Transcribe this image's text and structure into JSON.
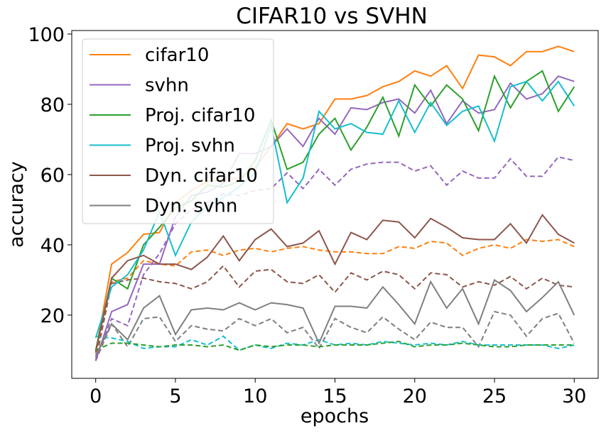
{
  "chart_data": {
    "type": "line",
    "title": "CIFAR10 vs SVHN",
    "xlabel": "epochs",
    "ylabel": "accuracy",
    "xlim": [
      -1.5,
      31.5
    ],
    "ylim": [
      2,
      101
    ],
    "xticks": [
      0,
      5,
      10,
      15,
      20,
      25,
      30
    ],
    "yticks": [
      20,
      40,
      60,
      80,
      100
    ],
    "grid": false,
    "legend_position": "top-left",
    "x": [
      0,
      1,
      2,
      3,
      4,
      5,
      6,
      7,
      8,
      9,
      10,
      11,
      12,
      13,
      14,
      15,
      16,
      17,
      18,
      19,
      20,
      21,
      22,
      23,
      24,
      25,
      26,
      27,
      28,
      29,
      30
    ],
    "series": [
      {
        "name": "cifar10",
        "color": "#ff7f0e",
        "dash": "solid",
        "values": [
          9.5,
          34.5,
          37.8,
          43,
          43.5,
          52,
          55.5,
          58,
          58.5,
          59,
          62,
          68,
          74.5,
          73,
          74.5,
          81.5,
          81.5,
          82.5,
          85,
          86.5,
          89.5,
          88,
          91,
          84.5,
          94,
          93.5,
          91,
          95,
          95,
          96.5,
          95
        ]
      },
      {
        "name": "svhn",
        "color": "#9467bd",
        "dash": "solid",
        "values": [
          7,
          21,
          23,
          34.5,
          34.5,
          48,
          54,
          55,
          57.5,
          66,
          66,
          68,
          73,
          68,
          76,
          71.5,
          79,
          78.5,
          80.5,
          81.5,
          77.5,
          84,
          74.5,
          81,
          77.5,
          78.5,
          86,
          81.5,
          83,
          88,
          86.5
        ]
      },
      {
        "name": "Proj. cifar10",
        "color": "#2ca02c",
        "dash": "solid",
        "values": [
          10,
          30.5,
          27.5,
          40,
          45,
          50.5,
          52.5,
          57,
          56.5,
          58,
          64,
          75.5,
          61.5,
          63.5,
          71.5,
          76,
          67,
          73.5,
          82,
          71,
          85.5,
          79.5,
          85.5,
          81.5,
          72.5,
          88,
          79,
          86.5,
          89.5,
          78,
          85
        ]
      },
      {
        "name": "Proj. svhn",
        "color": "#17becf",
        "dash": "solid",
        "values": [
          13.5,
          28,
          31.5,
          38.5,
          49.5,
          37,
          46.5,
          51,
          53.5,
          56.5,
          60.5,
          74,
          52,
          59,
          78,
          73,
          74.5,
          72,
          71.5,
          81,
          72,
          80.5,
          74,
          78,
          79.5,
          69.5,
          85,
          86.5,
          81,
          86.5,
          79.5
        ]
      },
      {
        "name": "Dyn. cifar10",
        "color": "#8c564b",
        "dash": "solid",
        "values": [
          9.5,
          30.5,
          35.5,
          37,
          34.5,
          34.5,
          33,
          36.5,
          42.5,
          35.5,
          41.5,
          44.5,
          39.5,
          40.5,
          44,
          34.5,
          43.5,
          41.5,
          47,
          46.5,
          42,
          47.5,
          45,
          42,
          41.5,
          41.5,
          46,
          40.5,
          48.5,
          43,
          40.5
        ]
      },
      {
        "name": "Dyn. svhn",
        "color": "#7f7f7f",
        "dash": "solid",
        "values": [
          8.5,
          17.5,
          13,
          22,
          25.5,
          14.5,
          21.5,
          22,
          21.5,
          23.5,
          21.5,
          23.5,
          23,
          22,
          12,
          22.5,
          22.5,
          22,
          28,
          23,
          17.5,
          29.5,
          22,
          27.5,
          17.5,
          30,
          27,
          21,
          25,
          29.5,
          20
        ]
      },
      {
        "name": "",
        "color": "#ff7f0e",
        "dash": "dashed",
        "values": [
          9,
          29.5,
          30.5,
          35.5,
          34.5,
          34,
          38,
          38.5,
          37,
          38.5,
          39,
          38,
          39,
          39.5,
          38.5,
          38,
          38,
          37.5,
          37.5,
          39.5,
          39,
          41,
          40.5,
          37,
          39,
          40,
          39,
          41.5,
          41,
          41.5,
          39.5
        ]
      },
      {
        "name": "",
        "color": "#9467bd",
        "dash": "dashed",
        "values": [
          8,
          19,
          17,
          31.5,
          37.5,
          46,
          50,
          52,
          54.5,
          54,
          55.5,
          56,
          60.5,
          56,
          61.5,
          57,
          61.5,
          63,
          63.5,
          63.5,
          61,
          62.5,
          57,
          61,
          59,
          59,
          64.5,
          59.5,
          59.5,
          65,
          64
        ]
      },
      {
        "name": "",
        "color": "#8c564b",
        "dash": "dashed",
        "values": [
          7,
          29,
          30,
          30.5,
          29.5,
          29,
          27.5,
          29.5,
          34,
          28,
          32.5,
          33,
          29.5,
          29,
          31.5,
          26.5,
          32,
          30,
          32.5,
          31.5,
          27.5,
          32,
          31.5,
          28,
          29.5,
          28.5,
          31,
          27.5,
          30.5,
          28.5,
          28
        ]
      },
      {
        "name": "",
        "color": "#7f7f7f",
        "dash": "dashed",
        "values": [
          7,
          17.5,
          11,
          19,
          19.5,
          12.5,
          17,
          16,
          15.5,
          19,
          17,
          19,
          15,
          16.5,
          10.5,
          19,
          16.5,
          15,
          19.5,
          16,
          13,
          18,
          16.5,
          16.5,
          11,
          21,
          20,
          14,
          19,
          20.5,
          12
        ]
      },
      {
        "name": "",
        "color": "#17becf",
        "dash": "dashed",
        "values": [
          14,
          13.5,
          12.5,
          10.5,
          11,
          11,
          13,
          11.5,
          14,
          10,
          11.5,
          10.5,
          12,
          11.5,
          13,
          11.5,
          12,
          11.5,
          12.5,
          12,
          11.5,
          12,
          11.5,
          12.5,
          11.5,
          11.5,
          11.5,
          11.5,
          11.5,
          10.5,
          11.5
        ]
      },
      {
        "name": "",
        "color": "#2ca02c",
        "dash": "dashed",
        "values": [
          10,
          12,
          12,
          11.5,
          11,
          11.5,
          11.5,
          11,
          11.5,
          10,
          11.5,
          11,
          11.5,
          11.5,
          11,
          11.5,
          11.5,
          11.5,
          12,
          12.5,
          11,
          11.5,
          11.5,
          12,
          11.5,
          11,
          11,
          11.5,
          11.5,
          11.5,
          11.5
        ]
      }
    ]
  }
}
